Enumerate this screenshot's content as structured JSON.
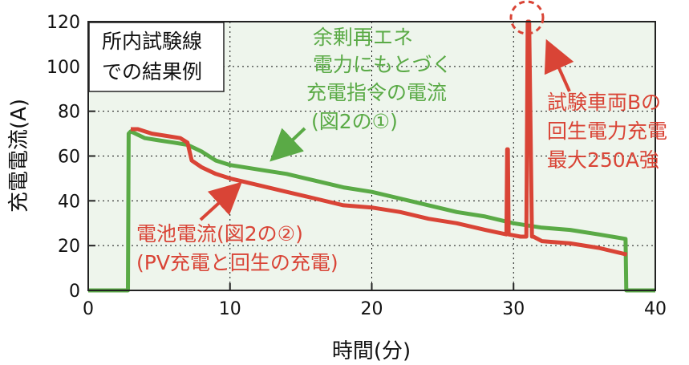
{
  "chart_data": {
    "type": "line",
    "xlabel": "時間(分)",
    "ylabel": "充電電流(A)",
    "xlim": [
      0,
      40
    ],
    "ylim": [
      0,
      120
    ],
    "xticks": [
      0,
      10,
      20,
      30,
      40
    ],
    "yticks": [
      0,
      20,
      40,
      60,
      80,
      100,
      120
    ],
    "grid": true,
    "background": "#eef5ec",
    "series": [
      {
        "name": "余剰再エネ電力にもとづく充電指令の電流(図2の①)",
        "color": "#5aaa46",
        "x": [
          0,
          2.8,
          2.85,
          3.0,
          4,
          5,
          6,
          7,
          8,
          9,
          10,
          12,
          14,
          16,
          18,
          20,
          22,
          24,
          26,
          28,
          30,
          32,
          34,
          36,
          37.9,
          37.95,
          38.2,
          40
        ],
        "y": [
          0,
          0,
          70,
          71,
          68,
          67,
          66,
          65,
          62,
          58,
          56,
          54,
          52,
          49,
          46,
          44,
          41,
          38,
          35,
          33,
          30,
          28,
          27,
          25,
          23,
          0,
          0,
          0
        ]
      },
      {
        "name": "電池電流(図2の②)(PV充電と回生の充電)",
        "color": "#d94436",
        "x": [
          3.0,
          3.5,
          4.5,
          5.5,
          6.5,
          7.0,
          7.3,
          8,
          9,
          10,
          12,
          14,
          16,
          18,
          20,
          22,
          24,
          26,
          28,
          29.5,
          29.55,
          29.6,
          29.65,
          30.5,
          30.9,
          31.0,
          31.1,
          31.3,
          31.4,
          32,
          34,
          36,
          38
        ],
        "y": [
          72,
          72,
          70,
          69,
          68,
          66,
          58,
          55,
          52,
          50,
          47,
          44,
          41,
          38,
          37,
          35,
          32,
          30,
          27,
          25,
          63,
          63,
          25,
          24,
          24,
          120,
          120,
          24,
          24,
          22,
          21,
          19,
          16
        ]
      }
    ],
    "annotations": {
      "box": [
        "所内試験線",
        "での結果例"
      ],
      "green_label": [
        "余剰再エネ",
        "電力にもとづく",
        "充電指令の電流",
        "(図2の①)"
      ],
      "red_label_battery": [
        "電池電流(図2の②)",
        "(PV充電と回生の充電)"
      ],
      "red_label_regen": [
        "試験車両Bの",
        "回生電力充電",
        "最大250A強"
      ]
    }
  }
}
